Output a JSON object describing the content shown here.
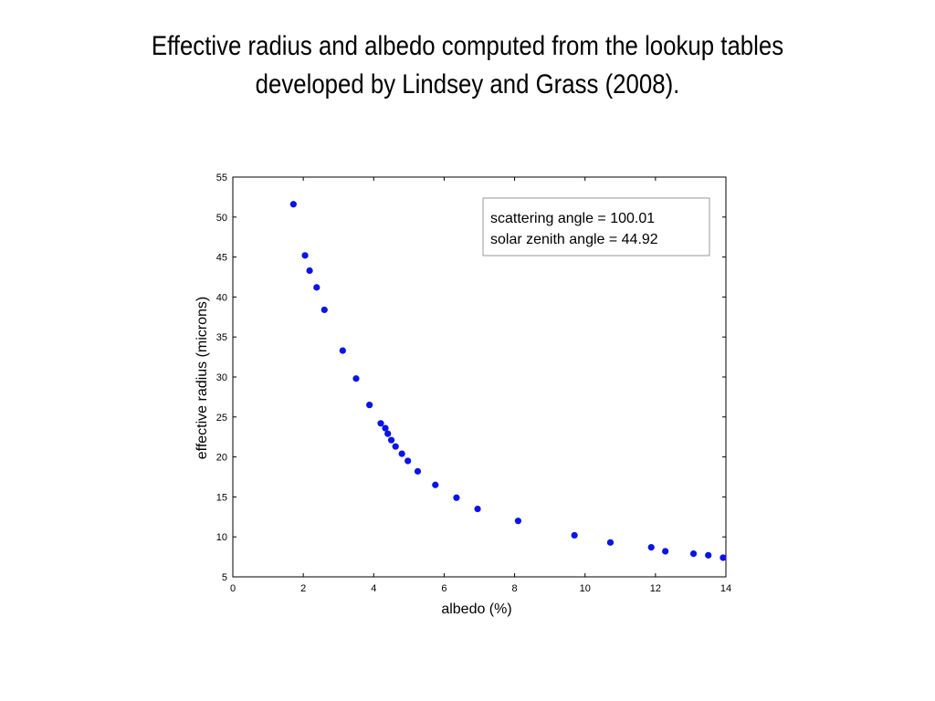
{
  "slide": {
    "title_line1": "Effective radius and albedo computed from the lookup tables",
    "title_line2": "developed by Lindsey and Grass (2008)."
  },
  "chart_data": {
    "type": "scatter",
    "xlabel": "albedo (%)",
    "ylabel": "effective radius (microns)",
    "xlim": [
      0,
      14
    ],
    "ylim": [
      5,
      55
    ],
    "xticks": [
      0,
      2,
      4,
      6,
      8,
      10,
      12,
      14
    ],
    "yticks": [
      5,
      10,
      15,
      20,
      25,
      30,
      35,
      40,
      45,
      50,
      55
    ],
    "grid": false,
    "marker_color": "#0a14e6",
    "annotations": [
      "scattering angle = 100.01",
      "solar zenith angle = 44.92"
    ],
    "series": [
      {
        "x": [
          1.72,
          2.05,
          2.18,
          2.38,
          2.6,
          3.12,
          3.5,
          3.88,
          4.2,
          4.33,
          4.4,
          4.5,
          4.62,
          4.8,
          4.97,
          5.25,
          5.75,
          6.35,
          6.95,
          8.1,
          9.7,
          10.72,
          11.88,
          12.28,
          13.08,
          13.5,
          13.92
        ],
        "y": [
          51.6,
          45.2,
          43.3,
          41.2,
          38.4,
          33.3,
          29.8,
          26.5,
          24.2,
          23.6,
          22.9,
          22.1,
          21.3,
          20.4,
          19.5,
          18.2,
          16.5,
          14.9,
          13.5,
          12.0,
          10.2,
          9.3,
          8.7,
          8.2,
          7.9,
          7.7,
          7.4
        ]
      }
    ]
  }
}
